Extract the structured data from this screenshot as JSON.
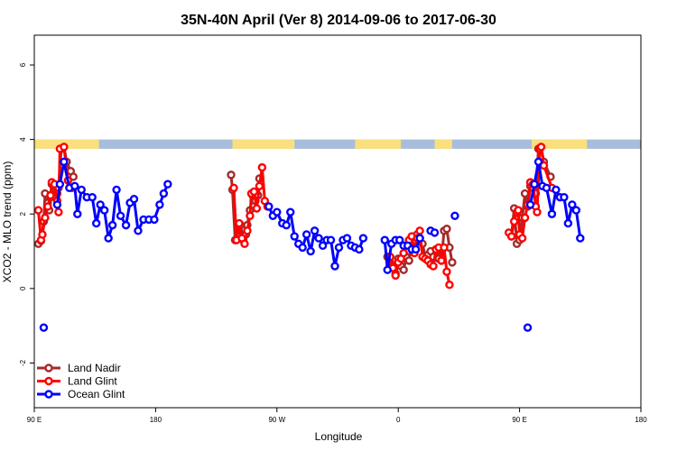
{
  "chart_data": {
    "type": "line",
    "title": "35N-40N April (Ver 8)   2014-09-06 to 2017-06-30",
    "xlabel": "Longitude",
    "ylabel": "XCO2 - MLO trend (ppm)",
    "xlim": [
      90,
      540
    ],
    "ylim": [
      -3.2,
      6.8
    ],
    "x_ticks": [
      {
        "value": 90,
        "label": "90 E"
      },
      {
        "value": 180,
        "label": "180"
      },
      {
        "value": 270,
        "label": "90 W"
      },
      {
        "value": 360,
        "label": "0"
      },
      {
        "value": 450,
        "label": "90 E"
      },
      {
        "value": 540,
        "label": "180"
      }
    ],
    "y_ticks": [
      {
        "value": -2,
        "label": "-2"
      },
      {
        "value": 0,
        "label": "0"
      },
      {
        "value": 2,
        "label": "2"
      },
      {
        "value": 4,
        "label": "4"
      },
      {
        "value": 6,
        "label": "6"
      }
    ],
    "legend_position": "bottom-left",
    "grid": false,
    "land_mask_band": {
      "y_range": [
        3.75,
        4.0
      ],
      "land_color": "#fadf7e",
      "ocean_color": "#a7bddb",
      "land_segments": [
        [
          90,
          138
        ],
        [
          105,
          114
        ],
        [
          237,
          283
        ],
        [
          328,
          362
        ],
        [
          387,
          400
        ],
        [
          459,
          500
        ]
      ]
    },
    "series": [
      {
        "name": "Land Nadir",
        "color": "#a52a2a",
        "segments": [
          [
            [
              93,
              1.2
            ],
            [
              95,
              1.28
            ],
            [
              97,
              1.8
            ],
            [
              98,
              2.55
            ],
            [
              100,
              2.3
            ],
            [
              101,
              2.1
            ],
            [
              102,
              2.45
            ],
            [
              103,
              2.8
            ],
            [
              106,
              2.6
            ],
            [
              107,
              2.55
            ],
            [
              108,
              2.7
            ],
            [
              110,
              3.75
            ],
            [
              112,
              3.8
            ],
            [
              114,
              3.4
            ],
            [
              117,
              3.15
            ],
            [
              119,
              3.0
            ]
          ],
          [
            [
              236,
              3.05
            ],
            [
              237,
              2.65
            ],
            [
              239,
              1.3
            ],
            [
              241,
              1.4
            ],
            [
              243,
              1.7
            ],
            [
              245,
              1.3
            ],
            [
              247,
              1.45
            ],
            [
              248,
              1.7
            ],
            [
              250,
              2.1
            ],
            [
              252,
              2.5
            ],
            [
              254,
              2.35
            ],
            [
              256,
              2.5
            ],
            [
              257,
              2.95
            ]
          ],
          [
            [
              352,
              0.85
            ],
            [
              354,
              0.7
            ],
            [
              356,
              0.6
            ],
            [
              358,
              0.4
            ],
            [
              360,
              0.8
            ],
            [
              362,
              0.6
            ],
            [
              364,
              0.5
            ],
            [
              366,
              0.85
            ],
            [
              368,
              0.75
            ],
            [
              370,
              1.25
            ],
            [
              372,
              1.3
            ],
            [
              374,
              1.45
            ],
            [
              376,
              1.35
            ],
            [
              378,
              1.2
            ],
            [
              380,
              0.85
            ],
            [
              382,
              0.9
            ],
            [
              384,
              1.0
            ],
            [
              386,
              0.85
            ],
            [
              388,
              1.05
            ],
            [
              390,
              0.8
            ],
            [
              392,
              0.75
            ],
            [
              394,
              1.55
            ],
            [
              396,
              1.6
            ],
            [
              398,
              1.1
            ],
            [
              400,
              0.7
            ]
          ],
          [
            [
              444,
              1.4
            ],
            [
              446,
              2.15
            ],
            [
              448,
              1.2
            ],
            [
              450,
              1.3
            ],
            [
              452,
              1.9
            ],
            [
              454,
              2.55
            ],
            [
              456,
              2.2
            ],
            [
              458,
              2.75
            ],
            [
              460,
              2.7
            ],
            [
              462,
              2.55
            ],
            [
              464,
              3.75
            ],
            [
              466,
              3.8
            ],
            [
              468,
              3.4
            ],
            [
              473,
              3.0
            ]
          ]
        ]
      },
      {
        "name": "Land Glint",
        "color": "#ff0000",
        "segments": [
          [
            [
              93,
              2.1
            ],
            [
              95,
              1.3
            ],
            [
              96,
              1.45
            ],
            [
              98,
              1.9
            ],
            [
              100,
              2.2
            ],
            [
              102,
              2.5
            ],
            [
              103,
              2.85
            ],
            [
              105,
              2.8
            ],
            [
              107,
              2.35
            ],
            [
              108,
              2.05
            ],
            [
              109,
              3.75
            ],
            [
              112,
              3.8
            ],
            [
              115,
              2.9
            ],
            [
              118,
              2.7
            ]
          ],
          [
            [
              238,
              2.7
            ],
            [
              240,
              1.3
            ],
            [
              242,
              1.75
            ],
            [
              244,
              1.35
            ],
            [
              246,
              1.2
            ],
            [
              248,
              1.55
            ],
            [
              250,
              1.95
            ],
            [
              251,
              2.55
            ],
            [
              253,
              2.6
            ],
            [
              255,
              2.15
            ],
            [
              257,
              2.75
            ],
            [
              259,
              3.25
            ],
            [
              261,
              2.35
            ],
            [
              263,
              2.2
            ]
          ],
          [
            [
              354,
              0.85
            ],
            [
              356,
              0.55
            ],
            [
              358,
              0.35
            ],
            [
              360,
              0.7
            ],
            [
              362,
              0.8
            ],
            [
              364,
              0.95
            ],
            [
              366,
              1.15
            ],
            [
              368,
              1.3
            ],
            [
              370,
              1.4
            ],
            [
              372,
              0.95
            ],
            [
              374,
              1.35
            ],
            [
              376,
              1.55
            ],
            [
              378,
              0.85
            ],
            [
              380,
              0.8
            ],
            [
              382,
              0.75
            ],
            [
              384,
              0.65
            ],
            [
              386,
              0.6
            ],
            [
              388,
              1.05
            ],
            [
              390,
              1.1
            ],
            [
              392,
              0.75
            ],
            [
              394,
              1.1
            ],
            [
              396,
              0.45
            ],
            [
              398,
              0.1
            ]
          ],
          [
            [
              442,
              1.5
            ],
            [
              444,
              1.4
            ],
            [
              446,
              1.8
            ],
            [
              448,
              2.05
            ],
            [
              449,
              2.1
            ],
            [
              450,
              1.45
            ],
            [
              452,
              1.35
            ],
            [
              454,
              1.9
            ],
            [
              456,
              2.25
            ],
            [
              458,
              2.85
            ],
            [
              460,
              2.8
            ],
            [
              462,
              2.2
            ],
            [
              463,
              2.05
            ],
            [
              465,
              3.75
            ],
            [
              466,
              3.8
            ],
            [
              468,
              3.3
            ],
            [
              474,
              2.7
            ]
          ]
        ]
      },
      {
        "name": "Ocean Glint",
        "color": "#0000ff",
        "segments": [
          [
            [
              97,
              -1.05
            ]
          ],
          [
            [
              107,
              2.25
            ],
            [
              109,
              2.8
            ],
            [
              112,
              3.4
            ],
            [
              116,
              2.7
            ],
            [
              120,
              2.75
            ],
            [
              122,
              2.0
            ],
            [
              125,
              2.65
            ],
            [
              129,
              2.45
            ],
            [
              133,
              2.45
            ],
            [
              136,
              1.75
            ],
            [
              139,
              2.25
            ],
            [
              142,
              2.1
            ],
            [
              145,
              1.35
            ],
            [
              148,
              1.7
            ],
            [
              151,
              2.65
            ],
            [
              154,
              1.95
            ],
            [
              158,
              1.7
            ],
            [
              161,
              2.3
            ],
            [
              164,
              2.4
            ],
            [
              167,
              1.55
            ],
            [
              171,
              1.85
            ],
            [
              175,
              1.85
            ],
            [
              179,
              1.85
            ],
            [
              183,
              2.25
            ],
            [
              186,
              2.55
            ],
            [
              189,
              2.8
            ]
          ],
          [
            [
              264,
              2.2
            ],
            [
              267,
              1.95
            ],
            [
              270,
              2.05
            ],
            [
              274,
              1.75
            ],
            [
              277,
              1.7
            ],
            [
              280,
              2.05
            ],
            [
              283,
              1.4
            ],
            [
              286,
              1.2
            ],
            [
              289,
              1.1
            ],
            [
              292,
              1.45
            ],
            [
              295,
              1.0
            ],
            [
              298,
              1.55
            ],
            [
              301,
              1.35
            ],
            [
              304,
              1.15
            ],
            [
              307,
              1.3
            ],
            [
              310,
              1.3
            ],
            [
              313,
              0.6
            ],
            [
              316,
              1.1
            ],
            [
              319,
              1.3
            ],
            [
              322,
              1.35
            ],
            [
              325,
              1.15
            ],
            [
              328,
              1.1
            ],
            [
              331,
              1.05
            ],
            [
              334,
              1.35
            ]
          ],
          [
            [
              350,
              1.3
            ],
            [
              352,
              0.5
            ],
            [
              355,
              1.2
            ],
            [
              358,
              1.3
            ],
            [
              361,
              1.3
            ],
            [
              364,
              1.15
            ],
            [
              367,
              1.15
            ],
            [
              370,
              1.05
            ],
            [
              373,
              1.05
            ],
            [
              376,
              1.35
            ]
          ],
          [
            [
              384,
              1.55
            ],
            [
              387,
              1.5
            ]
          ],
          [
            [
              402,
              1.95
            ]
          ],
          [
            [
              456,
              -1.05
            ]
          ],
          [
            [
              458,
              2.25
            ],
            [
              461,
              2.8
            ],
            [
              464,
              3.4
            ],
            [
              467,
              2.75
            ],
            [
              470,
              2.7
            ],
            [
              474,
              2.0
            ],
            [
              477,
              2.65
            ],
            [
              480,
              2.45
            ],
            [
              483,
              2.45
            ],
            [
              486,
              1.75
            ],
            [
              489,
              2.25
            ],
            [
              492,
              2.1
            ],
            [
              495,
              1.35
            ]
          ]
        ]
      }
    ]
  }
}
